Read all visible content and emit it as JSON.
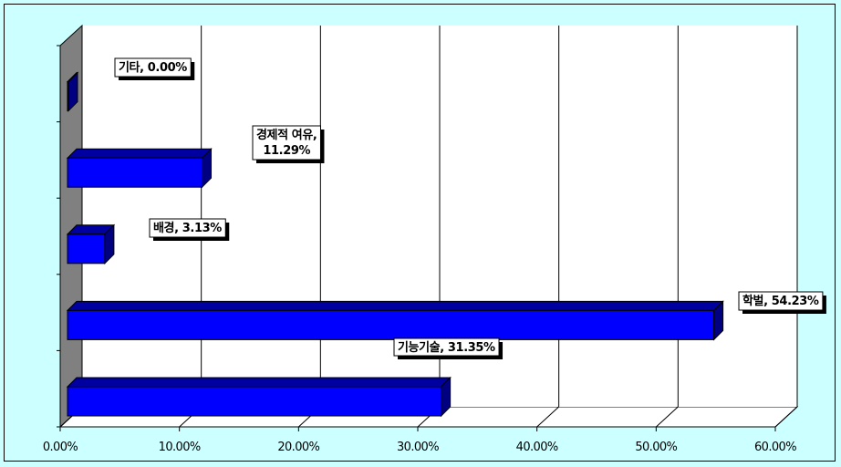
{
  "chart_data": {
    "type": "bar",
    "orientation": "horizontal",
    "categories": [
      "기능기술",
      "학벌",
      "배경",
      "경제적 여유",
      "기타"
    ],
    "values": [
      31.35,
      54.23,
      3.13,
      11.29,
      0.0
    ],
    "data_labels": [
      [
        "기능기술, 31.35%"
      ],
      [
        "학벌, 54.23%"
      ],
      [
        "배경, 3.13%"
      ],
      [
        "경제적 여유,",
        "11.29%"
      ],
      [
        "기타, 0.00%"
      ]
    ],
    "x_ticks": [
      "0.00%",
      "10.00%",
      "20.00%",
      "30.00%",
      "40.00%",
      "50.00%",
      "60.00%"
    ],
    "xlim": [
      0,
      60
    ],
    "grid": true,
    "legend": "none",
    "bar_color": "#0000ff",
    "bar_top_color": "#0000a0",
    "bar_side_color": "#000080",
    "plot_background": "#ffffff",
    "side_wall_color": "#808080",
    "page_background": "#ccffff"
  }
}
